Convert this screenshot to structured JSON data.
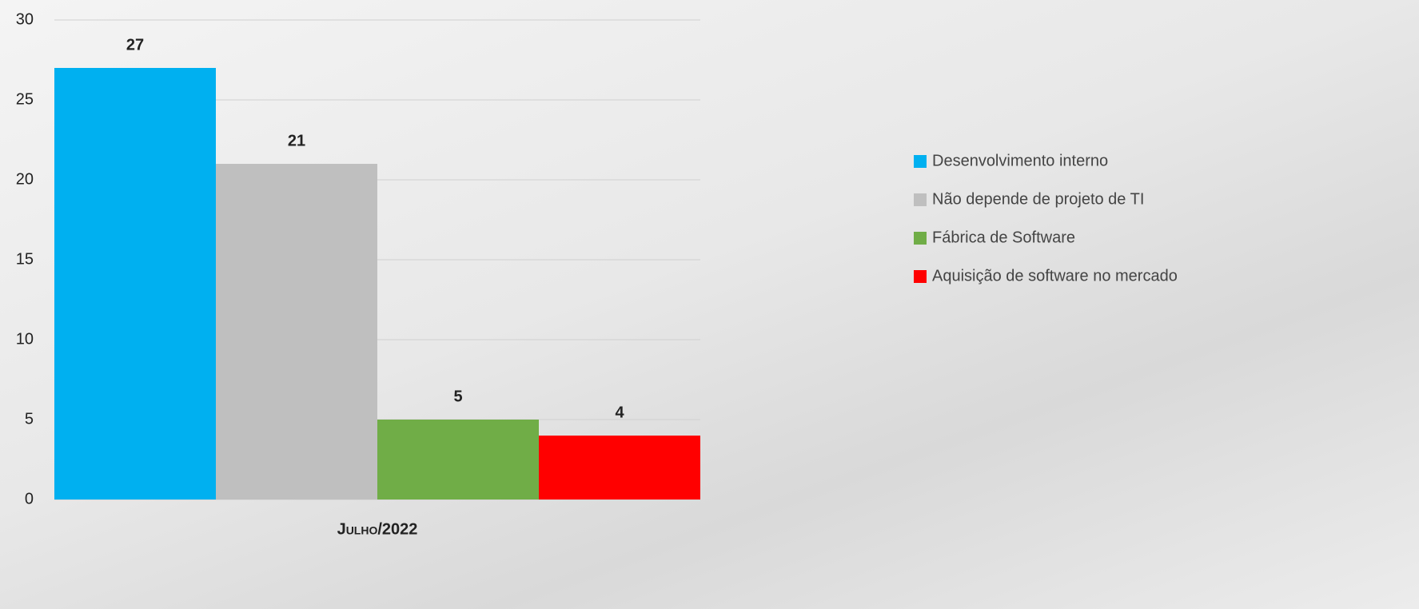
{
  "chart_data": {
    "type": "bar",
    "categories": [
      "Julho/2022"
    ],
    "series": [
      {
        "name": "Desenvolvimento interno",
        "color": "#00b0f0",
        "values": [
          27
        ]
      },
      {
        "name": "Não depende de projeto de TI",
        "color": "#bfbfbf",
        "values": [
          21
        ]
      },
      {
        "name": "Fábrica de Software",
        "color": "#70ad47",
        "values": [
          5
        ]
      },
      {
        "name": "Aquisição de software no mercado",
        "color": "#ff0000",
        "values": [
          4
        ]
      }
    ],
    "ylim": [
      0,
      30
    ],
    "yticks": [
      0,
      5,
      10,
      15,
      20,
      25,
      30
    ],
    "grid": true,
    "legend": "right"
  }
}
